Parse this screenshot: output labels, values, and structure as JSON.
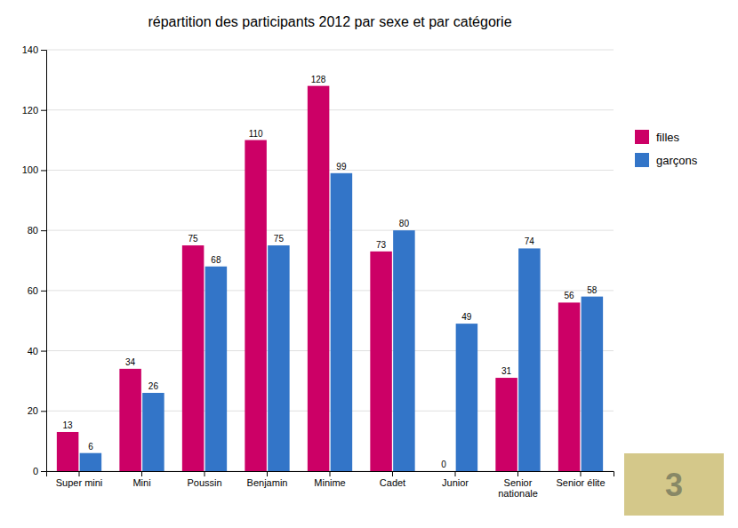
{
  "chart_data": {
    "type": "bar",
    "title": "répartition des participants 2012 par sexe et par catégorie",
    "categories": [
      "Super mini",
      "Mini",
      "Poussin",
      "Benjamin",
      "Minime",
      "Cadet",
      "Junior",
      "Senior\nnationale",
      "Senior élite"
    ],
    "series": [
      {
        "name": "filles",
        "color": "#CC0066",
        "values": [
          13,
          34,
          75,
          110,
          128,
          73,
          0,
          31,
          56
        ]
      },
      {
        "name": "garçons",
        "color": "#3375C8",
        "values": [
          6,
          26,
          68,
          75,
          99,
          80,
          49,
          74,
          58
        ]
      }
    ],
    "ylim": [
      0,
      140
    ],
    "yticks": [
      0,
      20,
      40,
      60,
      80,
      100,
      120,
      140
    ],
    "grid": true,
    "legend": "right",
    "data_labels": true,
    "annotations": [
      {
        "text": "3"
      }
    ]
  }
}
